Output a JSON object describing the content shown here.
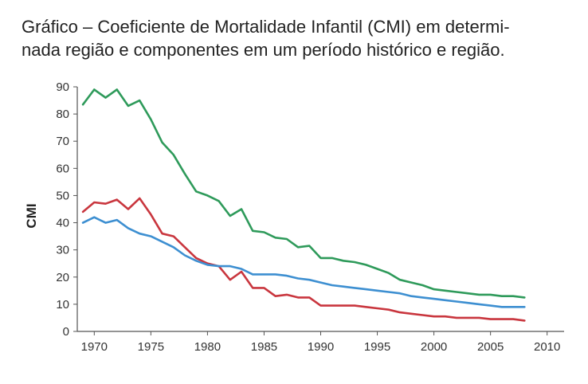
{
  "title_line1": "Gráfico – Coeficiente de Mortalidade Infantil (CMI) em determi-",
  "title_line2": "nada região e componentes em um período histórico e região.",
  "chart_data": {
    "type": "line",
    "title": "Gráfico – Coeficiente de Mortalidade Infantil (CMI) em determinada região e componentes em um período histórico e região.",
    "xlabel": "",
    "ylabel": "CMI",
    "xlim": [
      1968.5,
      2011.5
    ],
    "ylim": [
      0,
      90
    ],
    "xticks": [
      1970,
      1975,
      1980,
      1985,
      1990,
      1995,
      2000,
      2005,
      2010
    ],
    "yticks": [
      0,
      10,
      20,
      30,
      40,
      50,
      60,
      70,
      80,
      90
    ],
    "grid": false,
    "legend": "none",
    "series": [
      {
        "color": "#2e9a5a",
        "points": [
          [
            1969,
            83.5
          ],
          [
            1970,
            89
          ],
          [
            1971,
            86
          ],
          [
            1972,
            89
          ],
          [
            1973,
            83
          ],
          [
            1974,
            85
          ],
          [
            1975,
            78
          ],
          [
            1976,
            69.5
          ],
          [
            1977,
            65
          ],
          [
            1978,
            58
          ],
          [
            1979,
            51.5
          ],
          [
            1980,
            50
          ],
          [
            1981,
            48
          ],
          [
            1982,
            42.5
          ],
          [
            1983,
            45
          ],
          [
            1984,
            37
          ],
          [
            1985,
            36.5
          ],
          [
            1986,
            34.5
          ],
          [
            1987,
            34
          ],
          [
            1988,
            31
          ],
          [
            1989,
            31.5
          ],
          [
            1990,
            27
          ],
          [
            1991,
            27
          ],
          [
            1992,
            26
          ],
          [
            1993,
            25.5
          ],
          [
            1994,
            24.5
          ],
          [
            1995,
            23
          ],
          [
            1996,
            21.5
          ],
          [
            1997,
            19
          ],
          [
            1998,
            18
          ],
          [
            1999,
            17
          ],
          [
            2000,
            15.5
          ],
          [
            2001,
            15
          ],
          [
            2002,
            14.5
          ],
          [
            2003,
            14
          ],
          [
            2004,
            13.5
          ],
          [
            2005,
            13.5
          ],
          [
            2006,
            13
          ],
          [
            2007,
            13
          ],
          [
            2008,
            12.5
          ]
        ]
      },
      {
        "color": "#c9363e",
        "points": [
          [
            1969,
            44
          ],
          [
            1970,
            47.5
          ],
          [
            1971,
            47
          ],
          [
            1972,
            48.5
          ],
          [
            1973,
            45
          ],
          [
            1974,
            49
          ],
          [
            1975,
            43
          ],
          [
            1976,
            36
          ],
          [
            1977,
            35
          ],
          [
            1978,
            31
          ],
          [
            1979,
            27
          ],
          [
            1980,
            25
          ],
          [
            1981,
            24
          ],
          [
            1982,
            19
          ],
          [
            1983,
            22
          ],
          [
            1984,
            16
          ],
          [
            1985,
            16
          ],
          [
            1986,
            13
          ],
          [
            1987,
            13.5
          ],
          [
            1988,
            12.5
          ],
          [
            1989,
            12.5
          ],
          [
            1990,
            9.5
          ],
          [
            1991,
            9.5
          ],
          [
            1992,
            9.5
          ],
          [
            1993,
            9.5
          ],
          [
            1994,
            9
          ],
          [
            1995,
            8.5
          ],
          [
            1996,
            8
          ],
          [
            1997,
            7
          ],
          [
            1998,
            6.5
          ],
          [
            1999,
            6
          ],
          [
            2000,
            5.5
          ],
          [
            2001,
            5.5
          ],
          [
            2002,
            5
          ],
          [
            2003,
            5
          ],
          [
            2004,
            5
          ],
          [
            2005,
            4.5
          ],
          [
            2006,
            4.5
          ],
          [
            2007,
            4.5
          ],
          [
            2008,
            4
          ]
        ]
      },
      {
        "color": "#3d8fd1",
        "points": [
          [
            1969,
            40
          ],
          [
            1970,
            42
          ],
          [
            1971,
            40
          ],
          [
            1972,
            41
          ],
          [
            1973,
            38
          ],
          [
            1974,
            36
          ],
          [
            1975,
            35
          ],
          [
            1976,
            33
          ],
          [
            1977,
            31
          ],
          [
            1978,
            28
          ],
          [
            1979,
            26
          ],
          [
            1980,
            24.5
          ],
          [
            1981,
            24
          ],
          [
            1982,
            24
          ],
          [
            1983,
            23
          ],
          [
            1984,
            21
          ],
          [
            1985,
            21
          ],
          [
            1986,
            21
          ],
          [
            1987,
            20.5
          ],
          [
            1988,
            19.5
          ],
          [
            1989,
            19
          ],
          [
            1990,
            18
          ],
          [
            1991,
            17
          ],
          [
            1992,
            16.5
          ],
          [
            1993,
            16
          ],
          [
            1994,
            15.5
          ],
          [
            1995,
            15
          ],
          [
            1996,
            14.5
          ],
          [
            1997,
            14
          ],
          [
            1998,
            13
          ],
          [
            1999,
            12.5
          ],
          [
            2000,
            12
          ],
          [
            2001,
            11.5
          ],
          [
            2002,
            11
          ],
          [
            2003,
            10.5
          ],
          [
            2004,
            10
          ],
          [
            2005,
            9.5
          ],
          [
            2006,
            9
          ],
          [
            2007,
            9
          ],
          [
            2008,
            9
          ]
        ]
      }
    ]
  }
}
